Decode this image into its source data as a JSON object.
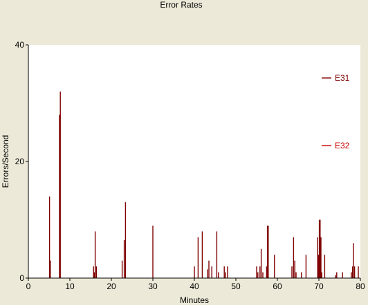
{
  "colors": {
    "background": "#ece9d8",
    "plot_area": "#ffffff",
    "axis": "#000000",
    "e31": "#7f0000",
    "e32": "#cc0000"
  },
  "chart_data": {
    "type": "bar",
    "title": "Error Rates",
    "xlabel": "Minutes",
    "ylabel": "Errors/Second",
    "xlim": [
      0,
      80
    ],
    "ylim": [
      0,
      40
    ],
    "xticks": [
      0,
      10,
      20,
      30,
      40,
      50,
      60,
      70,
      80
    ],
    "yticks": [
      0,
      20,
      40
    ],
    "grid": false,
    "legend_position": "right",
    "series": [
      {
        "name": "E31",
        "color": "#7f0000",
        "points": [
          [
            5.1,
            14
          ],
          [
            5.3,
            3
          ],
          [
            7.5,
            28
          ],
          [
            7.7,
            32
          ],
          [
            15.7,
            2
          ],
          [
            15.9,
            1
          ],
          [
            16.1,
            8
          ],
          [
            16.4,
            2
          ],
          [
            22.6,
            3
          ],
          [
            23.1,
            6.5
          ],
          [
            23.4,
            13
          ],
          [
            30.0,
            9
          ],
          [
            40.0,
            2
          ],
          [
            40.9,
            7
          ],
          [
            41.9,
            8
          ],
          [
            43.2,
            1.5
          ],
          [
            43.5,
            3
          ],
          [
            44.2,
            2
          ],
          [
            45.4,
            8
          ],
          [
            45.8,
            1
          ],
          [
            47.2,
            2
          ],
          [
            47.5,
            1
          ],
          [
            48.0,
            2
          ],
          [
            55.0,
            2
          ],
          [
            55.3,
            1
          ],
          [
            55.8,
            2
          ],
          [
            56.1,
            5
          ],
          [
            56.5,
            1
          ],
          [
            57.4,
            2
          ],
          [
            57.6,
            9
          ],
          [
            57.8,
            9
          ],
          [
            59.3,
            4
          ],
          [
            63.5,
            2
          ],
          [
            63.9,
            7
          ],
          [
            64.2,
            3
          ],
          [
            64.5,
            1
          ],
          [
            65.8,
            1
          ],
          [
            66.9,
            4
          ],
          [
            69.7,
            7
          ],
          [
            69.9,
            4
          ],
          [
            70.1,
            10
          ],
          [
            70.3,
            10
          ],
          [
            70.5,
            7
          ],
          [
            70.7,
            1
          ],
          [
            71.4,
            4
          ],
          [
            74.0,
            0.5
          ],
          [
            74.3,
            1
          ],
          [
            75.7,
            1
          ],
          [
            77.8,
            1
          ],
          [
            78.1,
            2
          ],
          [
            78.3,
            6
          ],
          [
            78.6,
            2
          ],
          [
            79.5,
            2
          ]
        ]
      },
      {
        "name": "E32",
        "color": "#cc0000",
        "points": []
      }
    ]
  }
}
